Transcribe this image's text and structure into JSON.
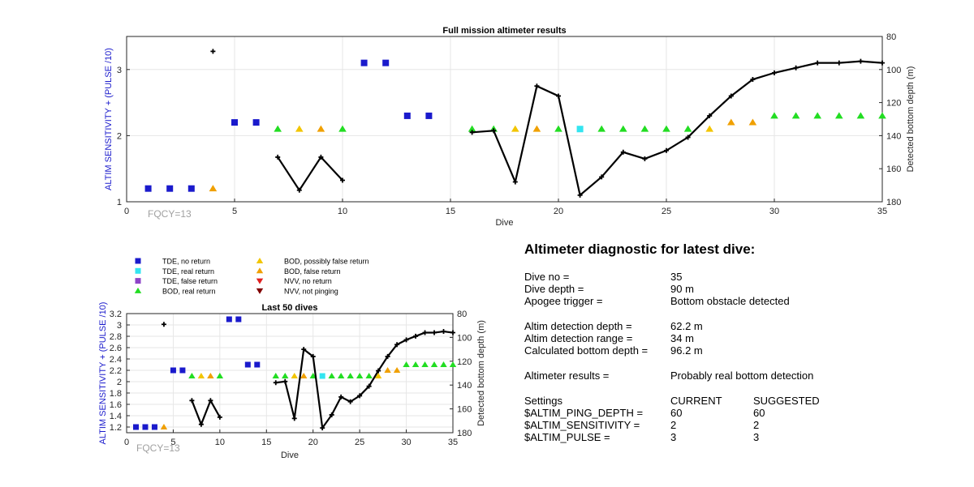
{
  "colors": {
    "tde_no_return": "#1a1acc",
    "tde_real_return": "#33e5f0",
    "tde_false_return": "#8e44c8",
    "bod_real_return": "#22dd22",
    "bod_possibly_false": "#f2c500",
    "bod_false_return": "#f0a000",
    "nvv_no_return": "#e02020",
    "nvv_not_pinging": "#800000",
    "depth_line": "#000000",
    "left_axis": "#1a1acc",
    "fqcy_text": "#a0a0a0"
  },
  "legend": {
    "items": [
      {
        "label": "TDE, no return",
        "marker": "square",
        "color_key": "tde_no_return"
      },
      {
        "label": "TDE, real return",
        "marker": "square",
        "color_key": "tde_real_return"
      },
      {
        "label": "TDE, false return",
        "marker": "square",
        "color_key": "tde_false_return"
      },
      {
        "label": "BOD, real return",
        "marker": "triangle-up",
        "color_key": "bod_real_return"
      },
      {
        "label": "BOD, possibly false return",
        "marker": "triangle-up",
        "color_key": "bod_possibly_false"
      },
      {
        "label": "BOD, false return",
        "marker": "triangle-up",
        "color_key": "bod_false_return"
      },
      {
        "label": "NVV, no return",
        "marker": "triangle-down",
        "color_key": "nvv_no_return"
      },
      {
        "label": "NVV, not pinging",
        "marker": "triangle-down",
        "color_key": "nvv_not_pinging"
      }
    ]
  },
  "chart_data": [
    {
      "type": "scatter",
      "title": "Full mission altimeter results",
      "xlabel": "Dive",
      "ylabel_left": "ALTIM SENSITIVITY + (PULSE /10)",
      "ylabel_right": "Detected bottom depth (m)",
      "annotation": "FQCY=13",
      "xlim": [
        0,
        35
      ],
      "ylim_left": [
        1,
        3.5
      ],
      "ylim_right": [
        180,
        80
      ],
      "xticks": [
        0,
        5,
        10,
        15,
        20,
        25,
        30,
        35
      ],
      "yticks_left": [
        1,
        2,
        3
      ],
      "yticks_right": [
        80,
        100,
        120,
        140,
        160,
        180
      ],
      "grid": true
    },
    {
      "type": "scatter",
      "title": "Last 50 dives",
      "xlabel": "Dive",
      "ylabel_left": "ALTIM SENSITIVITY + (PULSE /10)",
      "ylabel_right": "Detected bottom depth (m)",
      "annotation": "FQCY=13",
      "xlim": [
        0,
        35
      ],
      "ylim_left": [
        1.1,
        3.2
      ],
      "ylim_right": [
        180,
        80
      ],
      "xticks": [
        0,
        5,
        10,
        15,
        20,
        25,
        30,
        35
      ],
      "yticks_left": [
        1.2,
        1.4,
        1.6,
        1.8,
        2,
        2.2,
        2.4,
        2.6,
        2.8,
        3,
        3.2
      ],
      "yticks_right": [
        80,
        100,
        120,
        140,
        160,
        180
      ],
      "grid": true
    }
  ],
  "series": {
    "markers": [
      {
        "dive": 1,
        "y": 1.2,
        "cat": "tde_no_return"
      },
      {
        "dive": 2,
        "y": 1.2,
        "cat": "tde_no_return"
      },
      {
        "dive": 3,
        "y": 1.2,
        "cat": "tde_no_return"
      },
      {
        "dive": 4,
        "y": 1.2,
        "cat": "bod_false_return"
      },
      {
        "dive": 5,
        "y": 2.2,
        "cat": "tde_no_return"
      },
      {
        "dive": 6,
        "y": 2.2,
        "cat": "tde_no_return"
      },
      {
        "dive": 7,
        "y": 2.1,
        "cat": "bod_real_return"
      },
      {
        "dive": 8,
        "y": 2.1,
        "cat": "bod_possibly_false"
      },
      {
        "dive": 9,
        "y": 2.1,
        "cat": "bod_false_return"
      },
      {
        "dive": 10,
        "y": 2.1,
        "cat": "bod_real_return"
      },
      {
        "dive": 11,
        "y": 3.1,
        "cat": "tde_no_return"
      },
      {
        "dive": 12,
        "y": 3.1,
        "cat": "tde_no_return"
      },
      {
        "dive": 13,
        "y": 2.3,
        "cat": "tde_no_return"
      },
      {
        "dive": 14,
        "y": 2.3,
        "cat": "tde_no_return"
      },
      {
        "dive": 16,
        "y": 2.1,
        "cat": "bod_real_return"
      },
      {
        "dive": 17,
        "y": 2.1,
        "cat": "bod_real_return"
      },
      {
        "dive": 18,
        "y": 2.1,
        "cat": "bod_possibly_false"
      },
      {
        "dive": 19,
        "y": 2.1,
        "cat": "bod_false_return"
      },
      {
        "dive": 20,
        "y": 2.1,
        "cat": "bod_real_return"
      },
      {
        "dive": 21,
        "y": 2.1,
        "cat": "tde_real_return"
      },
      {
        "dive": 22,
        "y": 2.1,
        "cat": "bod_real_return"
      },
      {
        "dive": 23,
        "y": 2.1,
        "cat": "bod_real_return"
      },
      {
        "dive": 24,
        "y": 2.1,
        "cat": "bod_real_return"
      },
      {
        "dive": 25,
        "y": 2.1,
        "cat": "bod_real_return"
      },
      {
        "dive": 26,
        "y": 2.1,
        "cat": "bod_real_return"
      },
      {
        "dive": 27,
        "y": 2.1,
        "cat": "bod_possibly_false"
      },
      {
        "dive": 28,
        "y": 2.2,
        "cat": "bod_false_return"
      },
      {
        "dive": 29,
        "y": 2.2,
        "cat": "bod_false_return"
      },
      {
        "dive": 30,
        "y": 2.3,
        "cat": "bod_real_return"
      },
      {
        "dive": 31,
        "y": 2.3,
        "cat": "bod_real_return"
      },
      {
        "dive": 32,
        "y": 2.3,
        "cat": "bod_real_return"
      },
      {
        "dive": 33,
        "y": 2.3,
        "cat": "bod_real_return"
      },
      {
        "dive": 34,
        "y": 2.3,
        "cat": "bod_real_return"
      },
      {
        "dive": 35,
        "y": 2.3,
        "cat": "bod_real_return"
      }
    ],
    "depth_segments": [
      [
        {
          "dive": 4,
          "depth": 89
        }
      ],
      [
        {
          "dive": 7,
          "depth": 153
        },
        {
          "dive": 8,
          "depth": 173
        },
        {
          "dive": 9,
          "depth": 153
        },
        {
          "dive": 10,
          "depth": 167
        }
      ],
      [
        {
          "dive": 16,
          "depth": 138
        },
        {
          "dive": 17,
          "depth": 137
        },
        {
          "dive": 18,
          "depth": 168
        },
        {
          "dive": 19,
          "depth": 110
        },
        {
          "dive": 20,
          "depth": 116
        },
        {
          "dive": 21,
          "depth": 176
        },
        {
          "dive": 22,
          "depth": 165
        },
        {
          "dive": 23,
          "depth": 150
        },
        {
          "dive": 24,
          "depth": 154
        },
        {
          "dive": 25,
          "depth": 149
        },
        {
          "dive": 26,
          "depth": 141
        },
        {
          "dive": 27,
          "depth": 128
        },
        {
          "dive": 28,
          "depth": 116
        },
        {
          "dive": 29,
          "depth": 106
        },
        {
          "dive": 30,
          "depth": 102
        },
        {
          "dive": 31,
          "depth": 99
        },
        {
          "dive": 32,
          "depth": 96
        },
        {
          "dive": 33,
          "depth": 96
        },
        {
          "dive": 34,
          "depth": 95
        },
        {
          "dive": 35,
          "depth": 96
        }
      ]
    ]
  },
  "diagnostic": {
    "title": "Altimeter diagnostic for latest dive:",
    "rows": [
      {
        "label": "Dive no =",
        "value": "35"
      },
      {
        "label": "Dive depth =",
        "value": "90 m"
      },
      {
        "label": "Apogee trigger =",
        "value": "Bottom obstacle detected"
      },
      {
        "label": "Altim detection depth =",
        "value": "62.2 m"
      },
      {
        "label": "Altim detection range =",
        "value": "34 m"
      },
      {
        "label": "Calculated bottom depth =",
        "value": "96.2 m"
      },
      {
        "label": "Altimeter results =",
        "value": "Probably real bottom detection"
      }
    ],
    "settings": {
      "header": [
        "Settings",
        "CURRENT",
        "SUGGESTED"
      ],
      "rows": [
        {
          "label": "$ALTIM_PING_DEPTH =",
          "current": "60",
          "suggested": "60"
        },
        {
          "label": "$ALTIM_SENSITIVITY =",
          "current": "2",
          "suggested": "2"
        },
        {
          "label": "$ALTIM_PULSE =",
          "current": "3",
          "suggested": "3"
        }
      ]
    }
  }
}
